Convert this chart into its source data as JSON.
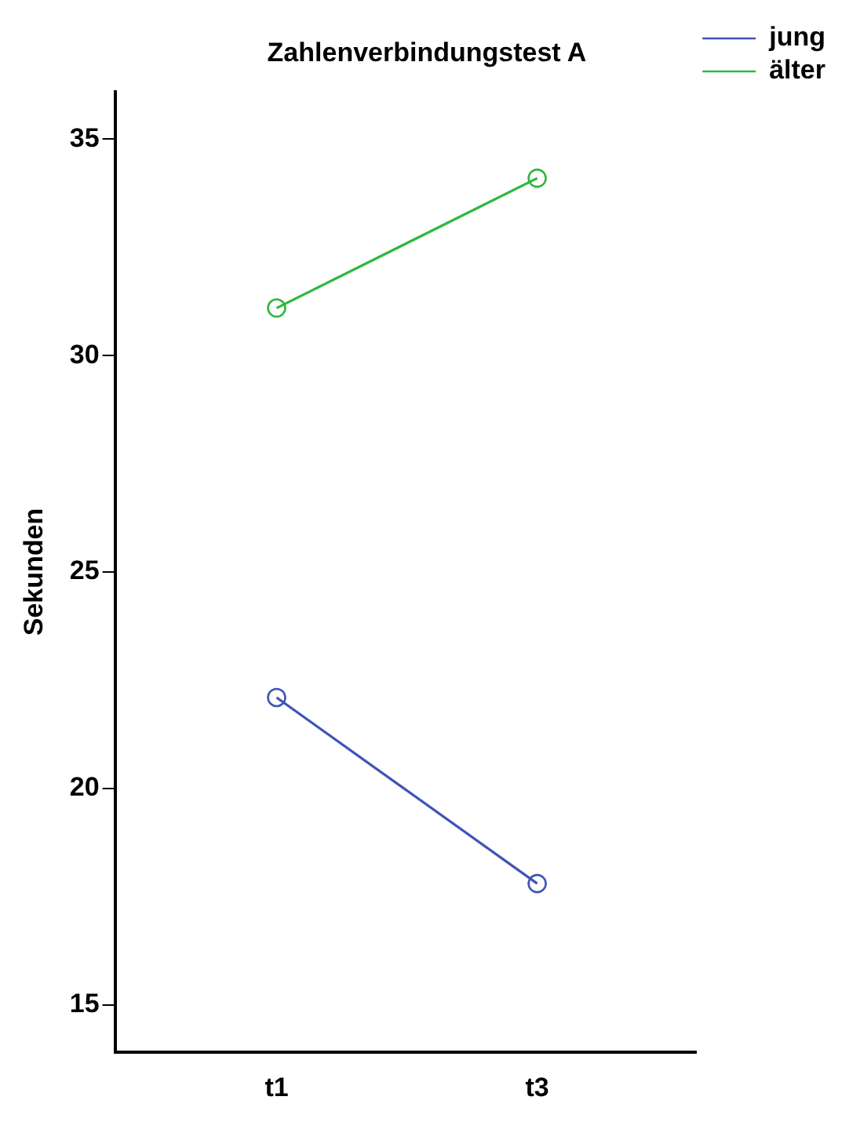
{
  "chart_data": {
    "type": "line",
    "title": "Zahlenverbindungstest A",
    "ylabel": "Sekunden",
    "categories": [
      "t1",
      "t3"
    ],
    "series": [
      {
        "name": "jung",
        "color": "#3d55b8",
        "values": [
          22.1,
          17.8
        ]
      },
      {
        "name": "älter",
        "color": "#2eb83e",
        "values": [
          31.1,
          34.1
        ]
      }
    ],
    "ylim": [
      13.9,
      36.1
    ],
    "yticks": [
      15,
      20,
      25,
      30,
      35
    ],
    "grid": false,
    "legend": "top right",
    "marker": "circle",
    "line_style": "solid"
  }
}
